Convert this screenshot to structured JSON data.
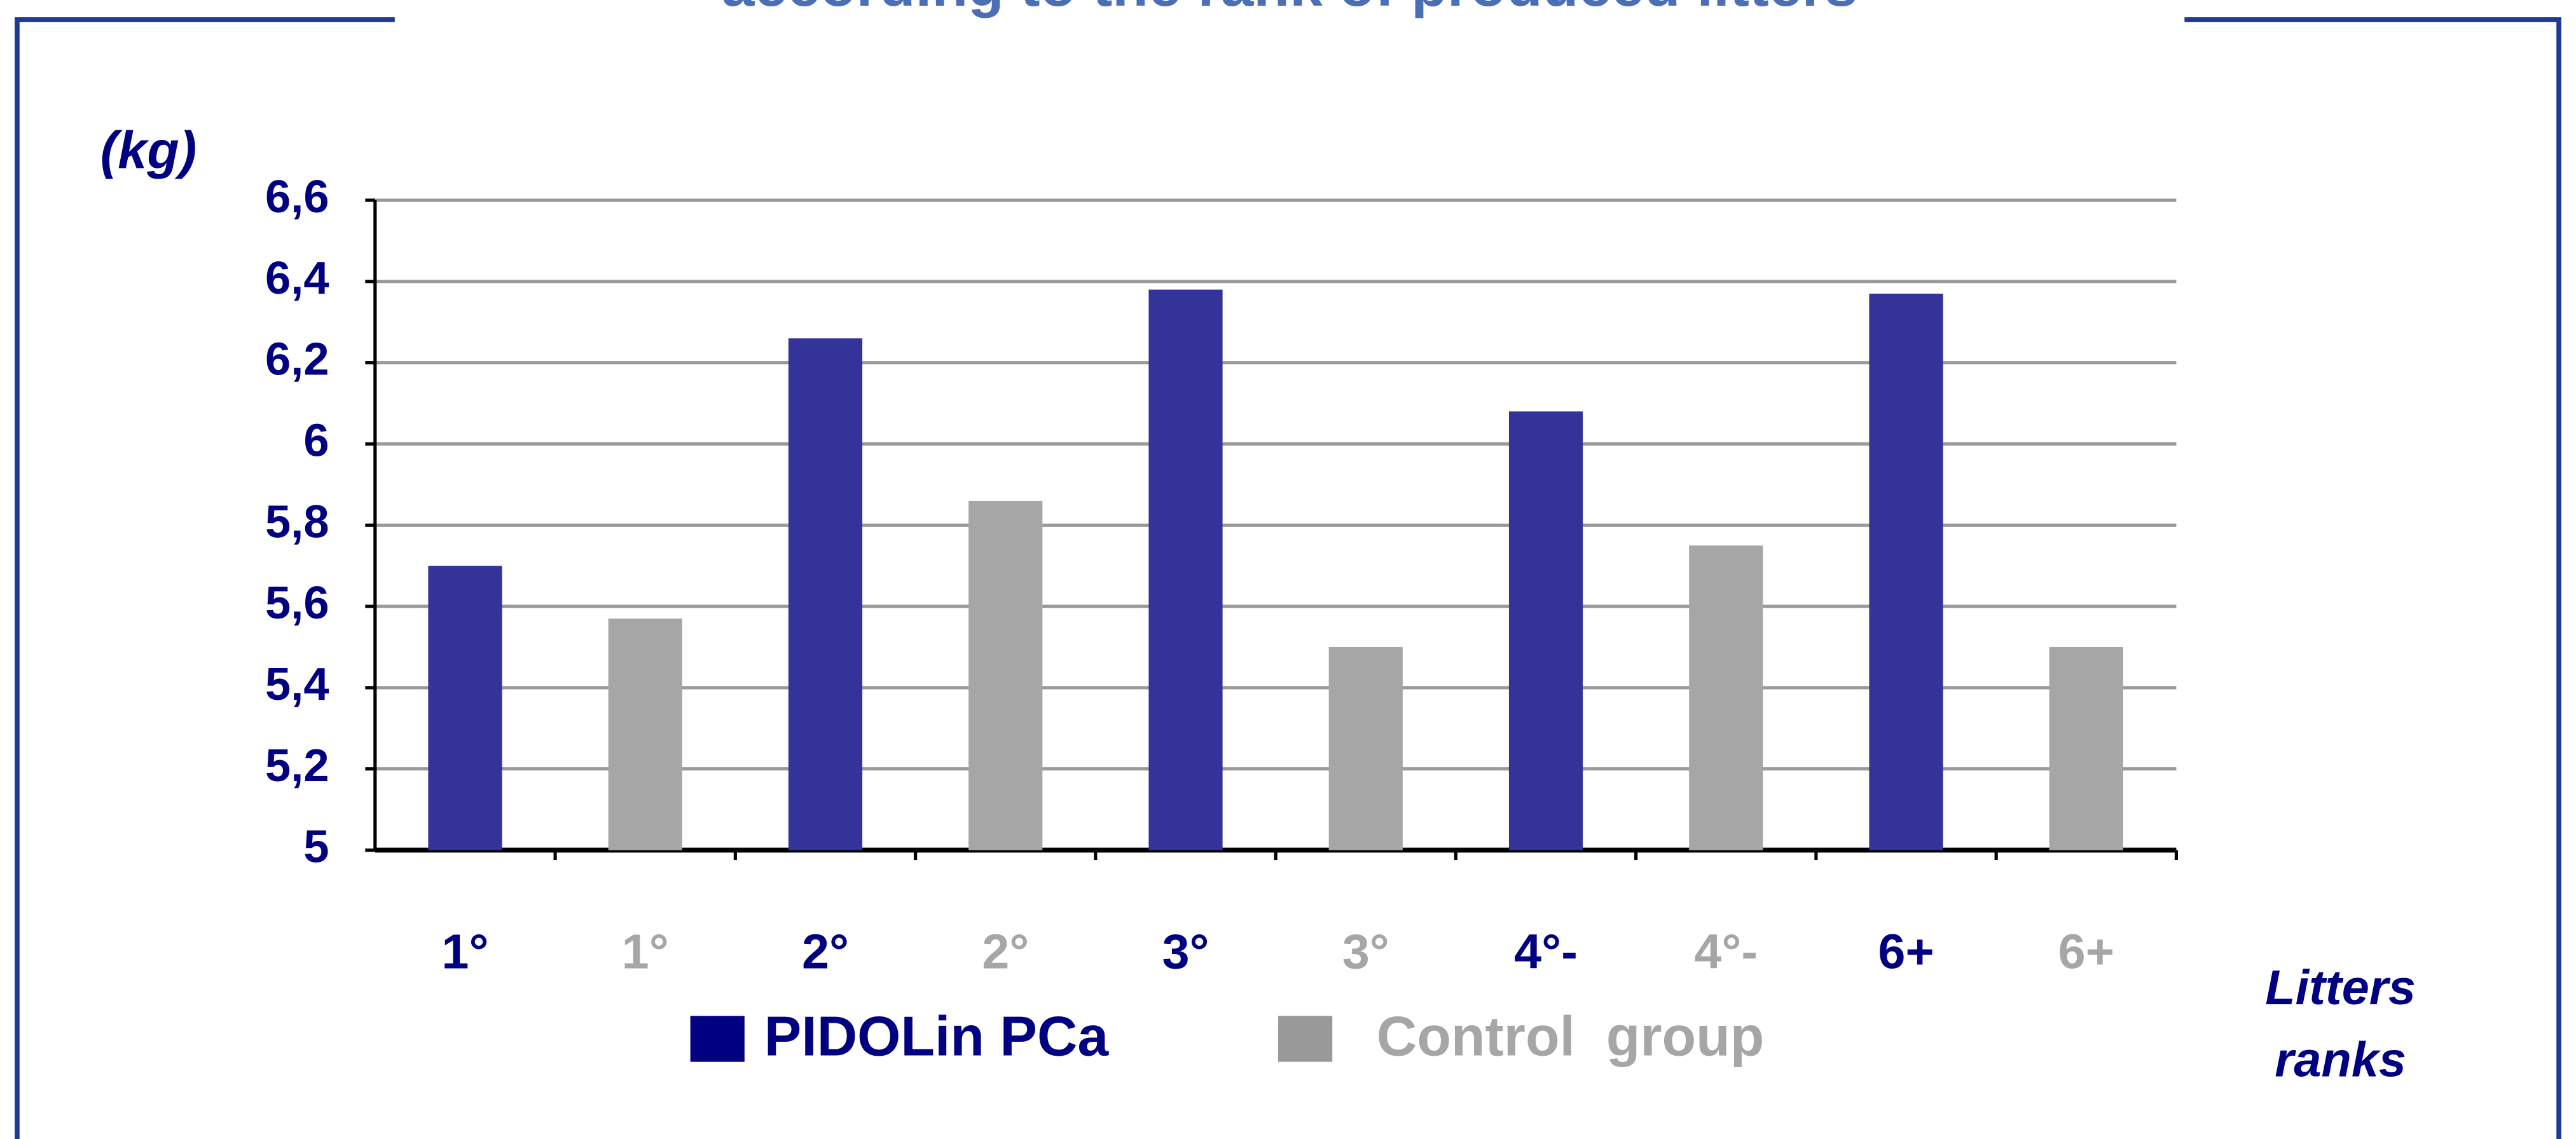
{
  "chart_data": {
    "type": "bar",
    "title": "according to the rank of produced litters",
    "y_label": "(kg)",
    "x_label": [
      "Litters",
      "ranks"
    ],
    "categories": [
      "1°",
      "1°",
      "2°",
      "2°",
      "3°",
      "3°",
      "4°-",
      "4°-",
      "6+",
      "6+"
    ],
    "series": [
      {
        "name": "PIDOLin PCa",
        "color": "#333399",
        "label_color": "#000080",
        "values": [
          5.7,
          null,
          6.26,
          null,
          6.38,
          null,
          6.08,
          null,
          6.37,
          null
        ]
      },
      {
        "name": "Control  group",
        "color": "#a6a6a6",
        "label_color": "#a6a6a6",
        "values": [
          null,
          5.57,
          null,
          5.86,
          null,
          5.5,
          null,
          5.75,
          null,
          5.5
        ]
      }
    ],
    "ylim": [
      5,
      6.6
    ],
    "yticks": [
      5,
      {
        "value": 5.2,
        "label": "5,2"
      },
      {
        "value": 5.4,
        "label": "5,4"
      },
      {
        "value": 5.6,
        "label": "5,6"
      },
      {
        "value": 5.8,
        "label": "5,8"
      },
      6,
      {
        "value": 6.2,
        "label": "6,2"
      },
      {
        "value": 6.4,
        "label": "6,4"
      },
      {
        "value": 6.6,
        "label": "6,6"
      }
    ],
    "grid": true
  }
}
